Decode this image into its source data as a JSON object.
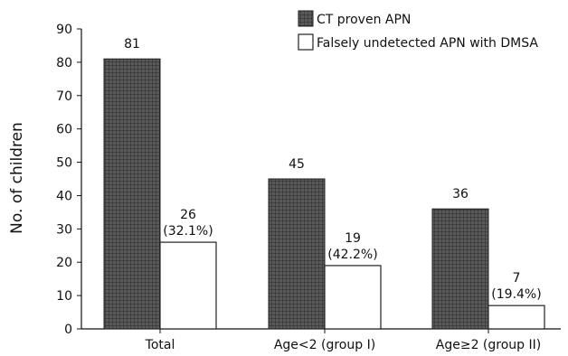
{
  "chart_data": {
    "type": "bar",
    "title": "",
    "xlabel": "",
    "ylabel": "No. of children",
    "ylim": [
      0,
      90
    ],
    "yticks": [
      0,
      10,
      20,
      30,
      40,
      50,
      60,
      70,
      80,
      90
    ],
    "categories": [
      "Total",
      "Age<2 (group I)",
      "Age≥2 (group II)"
    ],
    "series": [
      {
        "name": "CT proven APN",
        "values": [
          81,
          45,
          36
        ],
        "labels": [
          "81",
          "45",
          "36"
        ],
        "fill": "#4a4a4a",
        "pattern": "dark-grid"
      },
      {
        "name": "Falsely undetected APN with DMSA",
        "values": [
          26,
          19,
          7
        ],
        "labels": [
          "26",
          "19",
          "7"
        ],
        "percent_labels": [
          "(32.1%)",
          "(42.2%)",
          "(19.4%)"
        ],
        "fill": "#ffffff",
        "pattern": "none"
      }
    ],
    "grid": false,
    "legend_position": "top-right"
  }
}
